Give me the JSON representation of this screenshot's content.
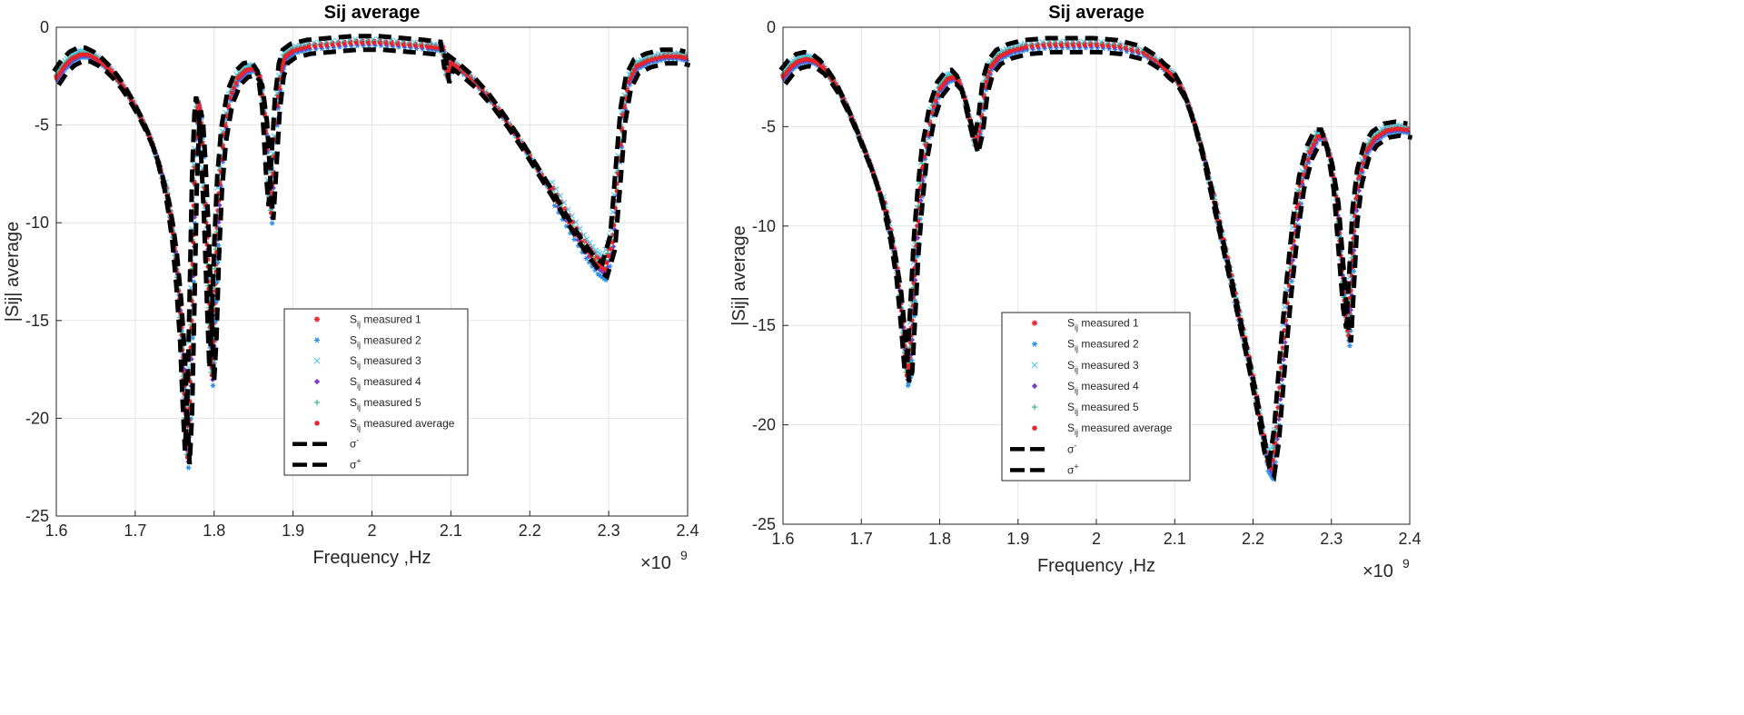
{
  "chart_data": [
    {
      "type": "scatter",
      "title": "Sij average",
      "xlabel": "Frequency ,Hz",
      "ylabel": "|Sij| average",
      "x_exponent_label": "×10",
      "x_exponent_power": "9",
      "xlim": [
        1.6,
        2.4
      ],
      "ylim": [
        -25,
        0
      ],
      "xticks": [
        "1.6",
        "1.7",
        "1.8",
        "1.9",
        "2",
        "2.1",
        "2.2",
        "2.3",
        "2.4"
      ],
      "yticks": [
        "0",
        "-5",
        "-10",
        "-15",
        "-20",
        "-25"
      ],
      "grid": true,
      "legend_position": "lower-center",
      "legend": [
        {
          "prefix": "S",
          "sub": "ij",
          "text": " measured 1",
          "marker": "star",
          "color": "#e8232a"
        },
        {
          "prefix": "S",
          "sub": "ij",
          "text": " measured 2",
          "marker": "asterisk",
          "color": "#2b8fe8"
        },
        {
          "prefix": "S",
          "sub": "ij",
          "text": " measured 3",
          "marker": "x",
          "color": "#56c8e8"
        },
        {
          "prefix": "S",
          "sub": "ij",
          "text": " measured 4",
          "marker": "diamond",
          "color": "#7b3fc4"
        },
        {
          "prefix": "S",
          "sub": "ij",
          "text": " measured 5",
          "marker": "plus",
          "color": "#3cb878"
        },
        {
          "prefix": "S",
          "sub": "ij",
          "text": " measured average",
          "marker": "dot",
          "color": "#e8232a"
        },
        {
          "prefix": "σ",
          "sup": "-",
          "text": "",
          "marker": "dash",
          "color": "#000000"
        },
        {
          "prefix": "σ",
          "sup": "+",
          "text": "",
          "marker": "dash",
          "color": "#000000"
        }
      ],
      "series_points": [
        [
          1.6,
          -2.6
        ],
        [
          1.61,
          -2.0
        ],
        [
          1.62,
          -1.6
        ],
        [
          1.63,
          -1.4
        ],
        [
          1.64,
          -1.4
        ],
        [
          1.65,
          -1.6
        ],
        [
          1.66,
          -1.9
        ],
        [
          1.67,
          -2.3
        ],
        [
          1.68,
          -2.8
        ],
        [
          1.69,
          -3.4
        ],
        [
          1.7,
          -4.1
        ],
        [
          1.71,
          -4.9
        ],
        [
          1.72,
          -5.8
        ],
        [
          1.73,
          -7.0
        ],
        [
          1.74,
          -8.6
        ],
        [
          1.745,
          -9.8
        ],
        [
          1.75,
          -11.3
        ],
        [
          1.755,
          -13.5
        ],
        [
          1.76,
          -16.5
        ],
        [
          1.763,
          -19.5
        ],
        [
          1.766,
          -22.0
        ],
        [
          1.769,
          -19.5
        ],
        [
          1.772,
          -14.0
        ],
        [
          1.775,
          -8.0
        ],
        [
          1.778,
          -4.8
        ],
        [
          1.78,
          -3.9
        ],
        [
          1.783,
          -4.5
        ],
        [
          1.786,
          -6.5
        ],
        [
          1.79,
          -10.0
        ],
        [
          1.794,
          -14.5
        ],
        [
          1.797,
          -17.8
        ],
        [
          1.8,
          -15.5
        ],
        [
          1.803,
          -11.5
        ],
        [
          1.807,
          -8.0
        ],
        [
          1.812,
          -5.5
        ],
        [
          1.82,
          -3.6
        ],
        [
          1.83,
          -2.6
        ],
        [
          1.84,
          -2.2
        ],
        [
          1.85,
          -2.1
        ],
        [
          1.858,
          -2.6
        ],
        [
          1.864,
          -4.5
        ],
        [
          1.869,
          -8.0
        ],
        [
          1.872,
          -9.5
        ],
        [
          1.875,
          -7.5
        ],
        [
          1.88,
          -4.0
        ],
        [
          1.885,
          -2.2
        ],
        [
          1.89,
          -1.5
        ],
        [
          1.9,
          -1.2
        ],
        [
          1.92,
          -1.0
        ],
        [
          1.95,
          -0.9
        ],
        [
          1.98,
          -0.8
        ],
        [
          2.01,
          -0.8
        ],
        [
          2.04,
          -0.9
        ],
        [
          2.07,
          -1.0
        ],
        [
          2.09,
          -1.1
        ],
        [
          2.095,
          -2.5
        ],
        [
          2.1,
          -1.8
        ],
        [
          2.11,
          -2.1
        ],
        [
          2.13,
          -2.8
        ],
        [
          2.15,
          -3.7
        ],
        [
          2.17,
          -4.8
        ],
        [
          2.19,
          -6.0
        ],
        [
          2.21,
          -7.3
        ],
        [
          2.23,
          -8.6
        ],
        [
          2.25,
          -10.0
        ],
        [
          2.27,
          -11.3
        ],
        [
          2.285,
          -12.1
        ],
        [
          2.295,
          -12.4
        ],
        [
          2.305,
          -11.0
        ],
        [
          2.312,
          -7.5
        ],
        [
          2.318,
          -4.5
        ],
        [
          2.325,
          -2.8
        ],
        [
          2.335,
          -2.0
        ],
        [
          2.35,
          -1.7
        ],
        [
          2.37,
          -1.5
        ],
        [
          2.39,
          -1.5
        ],
        [
          2.4,
          -1.6
        ]
      ]
    },
    {
      "type": "scatter",
      "title": "Sij average",
      "xlabel": "Frequency ,Hz",
      "ylabel": "|Sij| average",
      "x_exponent_label": "×10",
      "x_exponent_power": "9",
      "xlim": [
        1.6,
        2.4
      ],
      "ylim": [
        -25,
        0
      ],
      "xticks": [
        "1.6",
        "1.7",
        "1.8",
        "1.9",
        "2",
        "2.1",
        "2.2",
        "2.3",
        "2.4"
      ],
      "yticks": [
        "0",
        "-5",
        "-10",
        "-15",
        "-20",
        "-25"
      ],
      "grid": true,
      "legend_position": "lower-center",
      "legend": [
        {
          "prefix": "S",
          "sub": "ij",
          "text": " measured 1",
          "marker": "star",
          "color": "#e8232a"
        },
        {
          "prefix": "S",
          "sub": "ij",
          "text": " measured 2",
          "marker": "asterisk",
          "color": "#2b8fe8"
        },
        {
          "prefix": "S",
          "sub": "ij",
          "text": " measured 3",
          "marker": "x",
          "color": "#56c8e8"
        },
        {
          "prefix": "S",
          "sub": "ij",
          "text": " measured 4",
          "marker": "diamond",
          "color": "#7b3fc4"
        },
        {
          "prefix": "S",
          "sub": "ij",
          "text": " measured 5",
          "marker": "plus",
          "color": "#3cb878"
        },
        {
          "prefix": "S",
          "sub": "ij",
          "text": " measured average",
          "marker": "dot",
          "color": "#e8232a"
        },
        {
          "prefix": "σ",
          "sup": "-",
          "text": "",
          "marker": "dash",
          "color": "#000000"
        },
        {
          "prefix": "σ",
          "sup": "+",
          "text": "",
          "marker": "dash",
          "color": "#000000"
        }
      ],
      "series_points": [
        [
          1.6,
          -2.5
        ],
        [
          1.61,
          -2.0
        ],
        [
          1.62,
          -1.7
        ],
        [
          1.63,
          -1.6
        ],
        [
          1.64,
          -1.7
        ],
        [
          1.65,
          -2.0
        ],
        [
          1.66,
          -2.5
        ],
        [
          1.67,
          -3.1
        ],
        [
          1.68,
          -3.9
        ],
        [
          1.69,
          -4.8
        ],
        [
          1.7,
          -5.8
        ],
        [
          1.71,
          -6.8
        ],
        [
          1.72,
          -7.9
        ],
        [
          1.73,
          -9.2
        ],
        [
          1.74,
          -11.0
        ],
        [
          1.748,
          -13.0
        ],
        [
          1.754,
          -15.5
        ],
        [
          1.758,
          -17.5
        ],
        [
          1.762,
          -17.0
        ],
        [
          1.766,
          -14.0
        ],
        [
          1.77,
          -11.0
        ],
        [
          1.775,
          -8.5
        ],
        [
          1.78,
          -6.5
        ],
        [
          1.79,
          -4.3
        ],
        [
          1.8,
          -3.1
        ],
        [
          1.81,
          -2.6
        ],
        [
          1.818,
          -2.5
        ],
        [
          1.825,
          -2.8
        ],
        [
          1.832,
          -3.6
        ],
        [
          1.84,
          -5.0
        ],
        [
          1.846,
          -6.0
        ],
        [
          1.852,
          -5.0
        ],
        [
          1.858,
          -3.0
        ],
        [
          1.865,
          -2.0
        ],
        [
          1.875,
          -1.5
        ],
        [
          1.89,
          -1.2
        ],
        [
          1.91,
          -1.0
        ],
        [
          1.94,
          -0.9
        ],
        [
          1.97,
          -0.9
        ],
        [
          2.0,
          -0.9
        ],
        [
          2.03,
          -1.0
        ],
        [
          2.06,
          -1.3
        ],
        [
          2.08,
          -1.8
        ],
        [
          2.09,
          -2.2
        ],
        [
          2.1,
          -2.5
        ],
        [
          2.11,
          -3.2
        ],
        [
          2.12,
          -4.2
        ],
        [
          2.13,
          -5.5
        ],
        [
          2.14,
          -7.0
        ],
        [
          2.15,
          -8.8
        ],
        [
          2.16,
          -10.6
        ],
        [
          2.17,
          -12.4
        ],
        [
          2.18,
          -14.2
        ],
        [
          2.19,
          -16.0
        ],
        [
          2.2,
          -17.9
        ],
        [
          2.21,
          -20.0
        ],
        [
          2.218,
          -21.8
        ],
        [
          2.224,
          -22.2
        ],
        [
          2.23,
          -20.5
        ],
        [
          2.238,
          -16.5
        ],
        [
          2.246,
          -13.0
        ],
        [
          2.254,
          -10.0
        ],
        [
          2.262,
          -7.8
        ],
        [
          2.272,
          -6.3
        ],
        [
          2.282,
          -5.5
        ],
        [
          2.29,
          -5.5
        ],
        [
          2.298,
          -6.5
        ],
        [
          2.306,
          -8.5
        ],
        [
          2.312,
          -11.5
        ],
        [
          2.318,
          -14.5
        ],
        [
          2.322,
          -15.5
        ],
        [
          2.326,
          -12.5
        ],
        [
          2.33,
          -9.5
        ],
        [
          2.336,
          -7.5
        ],
        [
          2.345,
          -6.2
        ],
        [
          2.355,
          -5.6
        ],
        [
          2.37,
          -5.2
        ],
        [
          2.385,
          -5.1
        ],
        [
          2.4,
          -5.2
        ]
      ]
    }
  ]
}
